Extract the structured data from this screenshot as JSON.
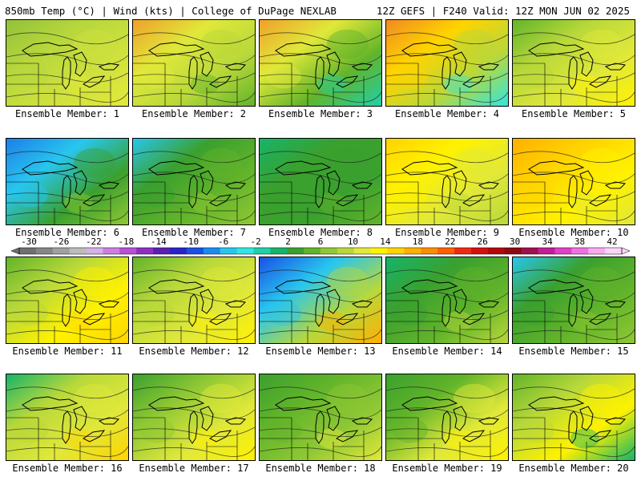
{
  "header": {
    "left": "850mb Temp (°C) | Wind (kts) | College of DuPage NEXLAB",
    "right": "12Z GEFS | F240 Valid: 12Z MON JUN 02 2025"
  },
  "colorbar": {
    "labels": [
      "-30",
      "-26",
      "-22",
      "-18",
      "-14",
      "-10",
      "-6",
      "-2",
      "2",
      "6",
      "10",
      "14",
      "18",
      "22",
      "26",
      "30",
      "34",
      "38",
      "42"
    ],
    "colors": [
      "#6f6f6f",
      "#868686",
      "#a0a0a0",
      "#bcbcbc",
      "#d6b0e6",
      "#cc7ee0",
      "#b94fd8",
      "#8d2fc4",
      "#5a1fb4",
      "#2a24c8",
      "#1a50e6",
      "#1d8af0",
      "#28c6ee",
      "#32e6e0",
      "#1fd0a8",
      "#16b46a",
      "#3aa02e",
      "#62b42a",
      "#8fc834",
      "#b8d83a",
      "#e0e83a",
      "#fff200",
      "#ffd400",
      "#ffb000",
      "#ff8c00",
      "#ff6000",
      "#f02a10",
      "#d40f10",
      "#b00a0a",
      "#8c0a14",
      "#a01050",
      "#c41c96",
      "#e040c8",
      "#f070e4",
      "#f8aaf0",
      "#fcd4f8"
    ]
  },
  "members": [
    {
      "label": "Ensemble Member: 1",
      "colors": [
        "#92c13a",
        "#b7d73c",
        "#cfe13d",
        "#e3e93a"
      ]
    },
    {
      "label": "Ensemble Member: 2",
      "colors": [
        "#f0a02a",
        "#e0e83a",
        "#b8d83a",
        "#62b42a"
      ]
    },
    {
      "label": "Ensemble Member: 3",
      "colors": [
        "#f0a02a",
        "#e0e83a",
        "#62b42a",
        "#1fd0a8"
      ]
    },
    {
      "label": "Ensemble Member: 4",
      "colors": [
        "#f08a20",
        "#ffd400",
        "#b8d83a",
        "#32e6e0"
      ]
    },
    {
      "label": "Ensemble Member: 5",
      "colors": [
        "#62b42a",
        "#b8d83a",
        "#e0e83a",
        "#fff200"
      ]
    },
    {
      "label": "Ensemble Member: 6",
      "colors": [
        "#1d7ee8",
        "#28c6ee",
        "#3aa02e",
        "#8fc834"
      ]
    },
    {
      "label": "Ensemble Member: 7",
      "colors": [
        "#28c6ee",
        "#3aa02e",
        "#62b42a",
        "#8fc834"
      ]
    },
    {
      "label": "Ensemble Member: 8",
      "colors": [
        "#16b46a",
        "#3aa02e",
        "#3aa02e",
        "#62b42a"
      ]
    },
    {
      "label": "Ensemble Member: 9",
      "colors": [
        "#ffd400",
        "#fff200",
        "#e0e83a",
        "#b8d83a"
      ]
    },
    {
      "label": "Ensemble Member: 10",
      "colors": [
        "#ffb000",
        "#ffd400",
        "#fff200",
        "#e0e83a"
      ]
    },
    {
      "label": "Ensemble Member: 11",
      "colors": [
        "#62b42a",
        "#b8d83a",
        "#fff200",
        "#ffd400"
      ]
    },
    {
      "label": "Ensemble Member: 12",
      "colors": [
        "#62b42a",
        "#b8d83a",
        "#e0e83a",
        "#fff200"
      ]
    },
    {
      "label": "Ensemble Member: 13",
      "colors": [
        "#1a50e6",
        "#28c6ee",
        "#b8d83a",
        "#ffb000"
      ]
    },
    {
      "label": "Ensemble Member: 14",
      "colors": [
        "#16b46a",
        "#3aa02e",
        "#62b42a",
        "#b8d83a"
      ]
    },
    {
      "label": "Ensemble Member: 15",
      "colors": [
        "#28c6ee",
        "#3aa02e",
        "#62b42a",
        "#8fc834"
      ]
    },
    {
      "label": "Ensemble Member: 16",
      "colors": [
        "#16b46a",
        "#b8d83a",
        "#e0e83a",
        "#ffd400"
      ]
    },
    {
      "label": "Ensemble Member: 17",
      "colors": [
        "#3aa02e",
        "#8fc834",
        "#e0e83a",
        "#fff200"
      ]
    },
    {
      "label": "Ensemble Member: 18",
      "colors": [
        "#3aa02e",
        "#62b42a",
        "#8fc834",
        "#e0e83a"
      ]
    },
    {
      "label": "Ensemble Member: 19",
      "colors": [
        "#3aa02e",
        "#62b42a",
        "#e0e83a",
        "#fff200"
      ]
    },
    {
      "label": "Ensemble Member: 20",
      "colors": [
        "#62b42a",
        "#b8d83a",
        "#fff200",
        "#16b46a"
      ]
    }
  ]
}
